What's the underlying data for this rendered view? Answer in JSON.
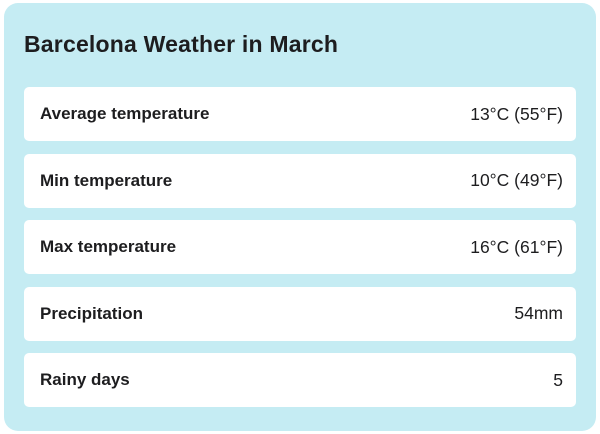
{
  "title": "Barcelona Weather in March",
  "colors": {
    "card_background": "#c5ecf3",
    "row_background": "#ffffff",
    "text": "#1d1d1f",
    "page_background": "#ffffff"
  },
  "rows": [
    {
      "label": "Average temperature",
      "value": "13°C (55°F)"
    },
    {
      "label": "Min temperature",
      "value": "10°C (49°F)"
    },
    {
      "label": "Max temperature",
      "value": "16°C (61°F)"
    },
    {
      "label": "Precipitation",
      "value": "54mm"
    },
    {
      "label": "Rainy days",
      "value": "5"
    }
  ]
}
